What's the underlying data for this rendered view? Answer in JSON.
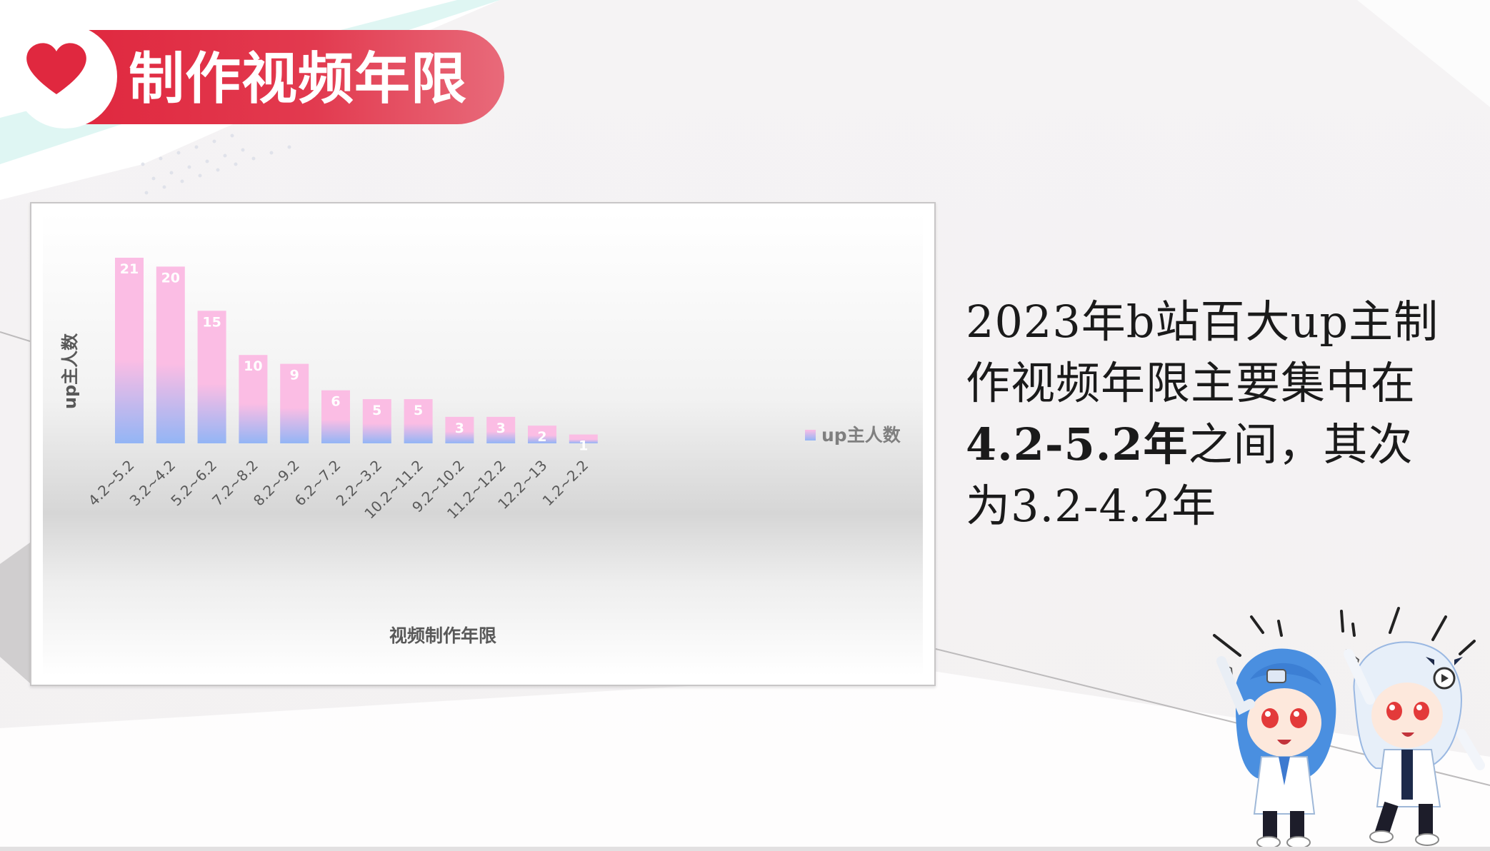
{
  "slide": {
    "title": "制作视频年限"
  },
  "summary": {
    "line1": "2023年b站百大up主制",
    "line2": "作视频年限主要集中在",
    "line3_bold": "4.2-5.2年",
    "line3_rest": "之间，其次",
    "line4": "为3.2-4.2年"
  },
  "colors": {
    "title_bar": "#e0283f",
    "bar_top": "#fbbde4",
    "bar_bottom": "#93b5f5",
    "label_text": "#ffffff",
    "axis_text": "#595959"
  },
  "chart_data": {
    "type": "bar",
    "title": "",
    "xlabel": "视频制作年限",
    "ylabel": "up主人数",
    "categories": [
      "4.2~5.2",
      "3.2~4.2",
      "5.2~6.2",
      "7.2~8.2",
      "8.2~9.2",
      "6.2~7.2",
      "2.2~3.2",
      "10.2~11.2",
      "9.2~10.2",
      "11.2~12.2",
      "12.2~13",
      "1.2~2.2"
    ],
    "series": [
      {
        "name": "up主人数",
        "values": [
          21,
          20,
          15,
          10,
          9,
          6,
          5,
          5,
          3,
          3,
          2,
          1
        ]
      }
    ],
    "ylim": [
      0,
      21
    ],
    "grid": false,
    "legend": "right",
    "data_labels": true
  }
}
